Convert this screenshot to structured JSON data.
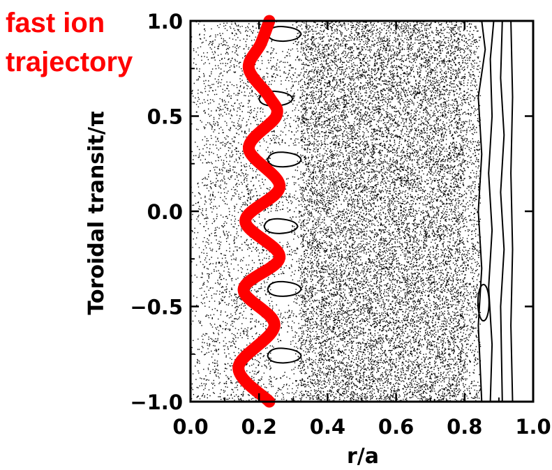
{
  "chart_data": {
    "type": "scatter",
    "title": "",
    "xlabel": "r/a",
    "ylabel": "Toroidal transit/π",
    "xlim": [
      0.0,
      1.0
    ],
    "ylim": [
      -1.0,
      1.0
    ],
    "grid": false,
    "xticks": [
      {
        "value": 0.0,
        "label": "0.0"
      },
      {
        "value": 0.2,
        "label": "0.2"
      },
      {
        "value": 0.4,
        "label": "0.4"
      },
      {
        "value": 0.6,
        "label": "0.6"
      },
      {
        "value": 0.8,
        "label": "0.8"
      },
      {
        "value": 1.0,
        "label": "1.0"
      }
    ],
    "yticks": [
      {
        "value": 1.0,
        "label": "1.0"
      },
      {
        "value": 0.5,
        "label": "0.5"
      },
      {
        "value": 0.0,
        "label": "0.0"
      },
      {
        "value": -0.5,
        "label": "−0.5"
      },
      {
        "value": -1.0,
        "label": "−1.0"
      }
    ],
    "annotation": {
      "line1": "fast ion",
      "line2": "trajectory",
      "color": "#ff0000"
    },
    "trajectory": {
      "color": "#ff0000",
      "points": [
        [
          0.23,
          1.0
        ],
        [
          0.205,
          0.88
        ],
        [
          0.17,
          0.75
        ],
        [
          0.23,
          0.6
        ],
        [
          0.25,
          0.5
        ],
        [
          0.17,
          0.33
        ],
        [
          0.26,
          0.13
        ],
        [
          0.16,
          -0.05
        ],
        [
          0.26,
          -0.24
        ],
        [
          0.155,
          -0.41
        ],
        [
          0.245,
          -0.6
        ],
        [
          0.14,
          -0.82
        ],
        [
          0.23,
          -1.0
        ]
      ]
    },
    "islands": [
      {
        "r": 0.27,
        "theta": 0.93
      },
      {
        "r": 0.245,
        "theta": 0.59
      },
      {
        "r": 0.27,
        "theta": 0.27
      },
      {
        "r": 0.26,
        "theta": -0.08
      },
      {
        "r": 0.27,
        "theta": -0.41
      },
      {
        "r": 0.27,
        "theta": -0.76
      }
    ],
    "contours_right": [
      [
        [
          0.85,
          1.0
        ],
        [
          0.86,
          0.85
        ],
        [
          0.84,
          0.6
        ],
        [
          0.85,
          0.3
        ],
        [
          0.84,
          0.0
        ],
        [
          0.85,
          -0.3
        ],
        [
          0.84,
          -0.6
        ],
        [
          0.85,
          -1.0
        ]
      ],
      [
        [
          0.885,
          1.0
        ],
        [
          0.875,
          0.8
        ],
        [
          0.88,
          0.5
        ],
        [
          0.87,
          0.2
        ],
        [
          0.88,
          -0.1
        ],
        [
          0.87,
          -0.4
        ],
        [
          0.88,
          -0.7
        ],
        [
          0.875,
          -1.0
        ]
      ],
      [
        [
          0.91,
          1.0
        ],
        [
          0.905,
          0.7
        ],
        [
          0.915,
          0.4
        ],
        [
          0.905,
          0.1
        ],
        [
          0.915,
          -0.2
        ],
        [
          0.905,
          -0.5
        ],
        [
          0.91,
          -1.0
        ]
      ],
      [
        [
          0.935,
          1.0
        ],
        [
          0.94,
          0.6
        ],
        [
          0.935,
          0.2
        ],
        [
          0.94,
          -0.2
        ],
        [
          0.935,
          -0.6
        ],
        [
          0.94,
          -1.0
        ]
      ]
    ]
  }
}
